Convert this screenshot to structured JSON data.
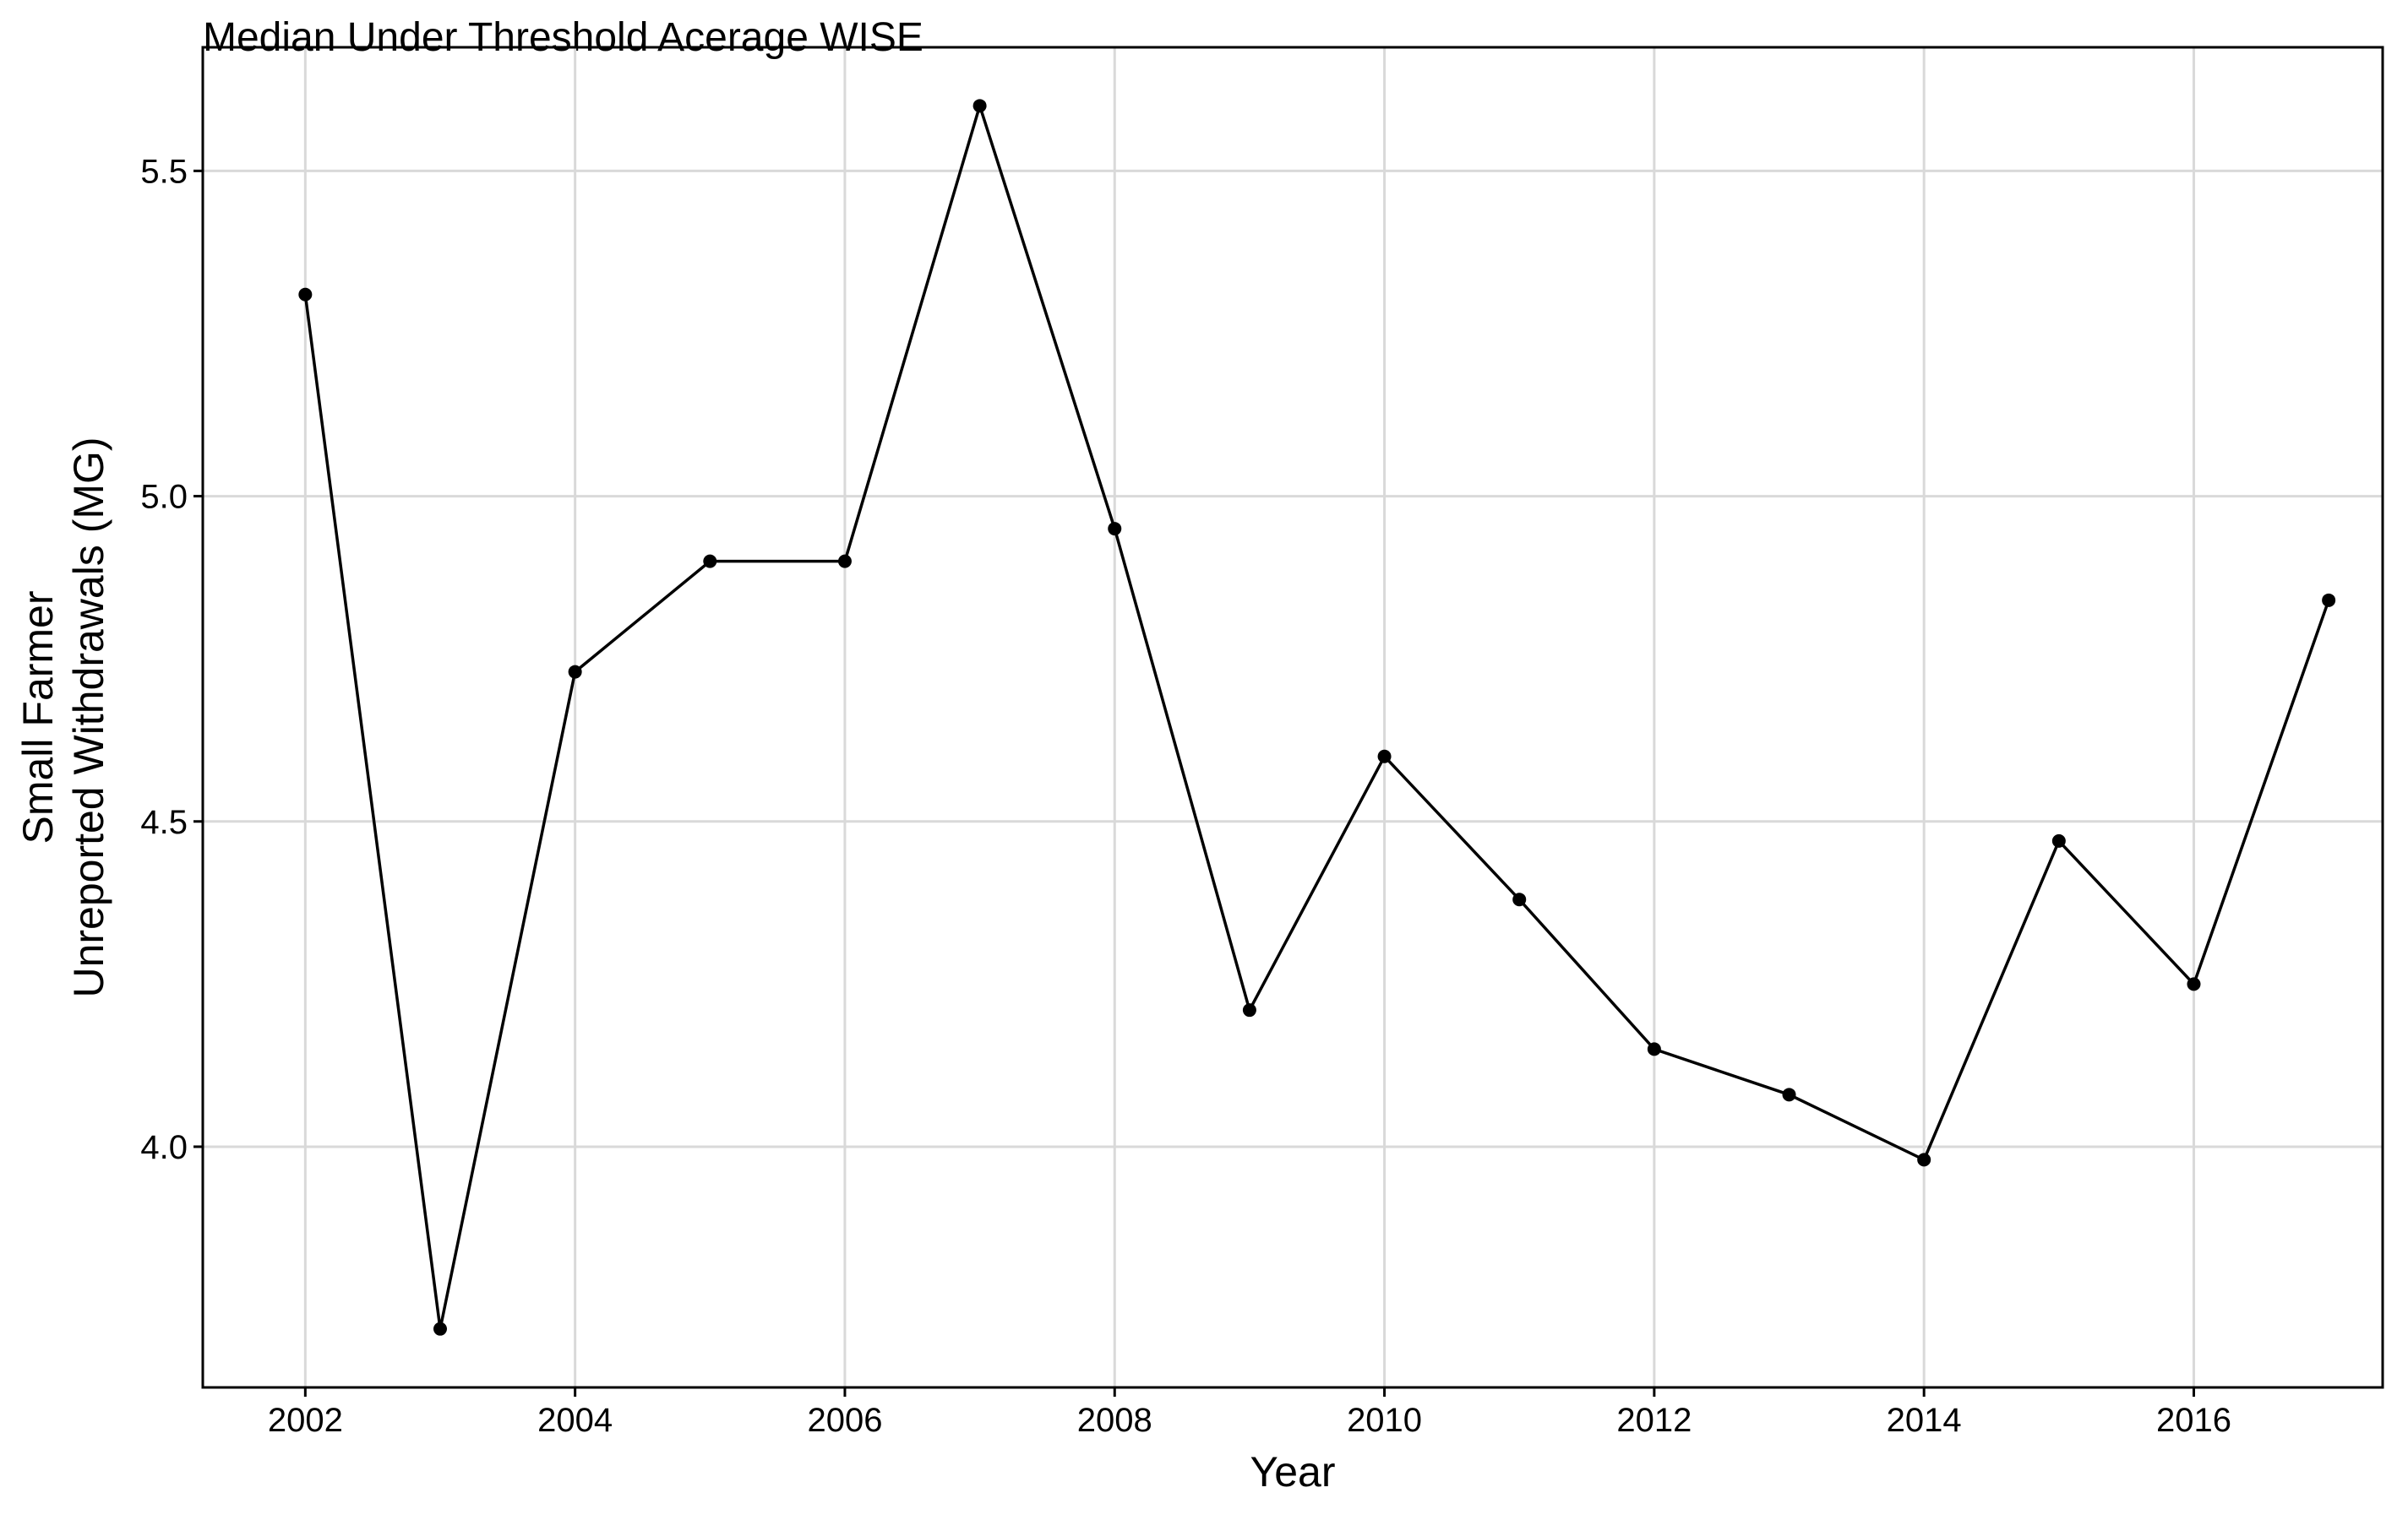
{
  "chart_data": {
    "type": "line",
    "title": "Median Under Threshold Acerage WISE",
    "xlabel": "Year",
    "ylabel_lines": [
      "Small Farmer",
      "Unreported Withdrawals (MG)"
    ],
    "x_ticks": [
      2002,
      2004,
      2006,
      2008,
      2010,
      2012,
      2014,
      2016
    ],
    "y_ticks": [
      4.0,
      4.5,
      5.0,
      5.5
    ],
    "y_tick_labels": [
      "4.0",
      "4.5",
      "5.0",
      "5.5"
    ],
    "xlim": [
      2001.24,
      2017.4
    ],
    "ylim": [
      3.63,
      5.69
    ],
    "grid": true,
    "series": [
      {
        "x": [
          2002,
          2003,
          2004,
          2005,
          2006,
          2007,
          2008,
          2009,
          2010,
          2011,
          2012,
          2013,
          2014,
          2015,
          2016,
          2017
        ],
        "values": [
          5.31,
          3.72,
          4.73,
          4.9,
          4.9,
          5.6,
          4.95,
          4.21,
          4.6,
          4.38,
          4.15,
          4.08,
          3.98,
          4.47,
          4.25,
          4.84
        ]
      }
    ]
  }
}
